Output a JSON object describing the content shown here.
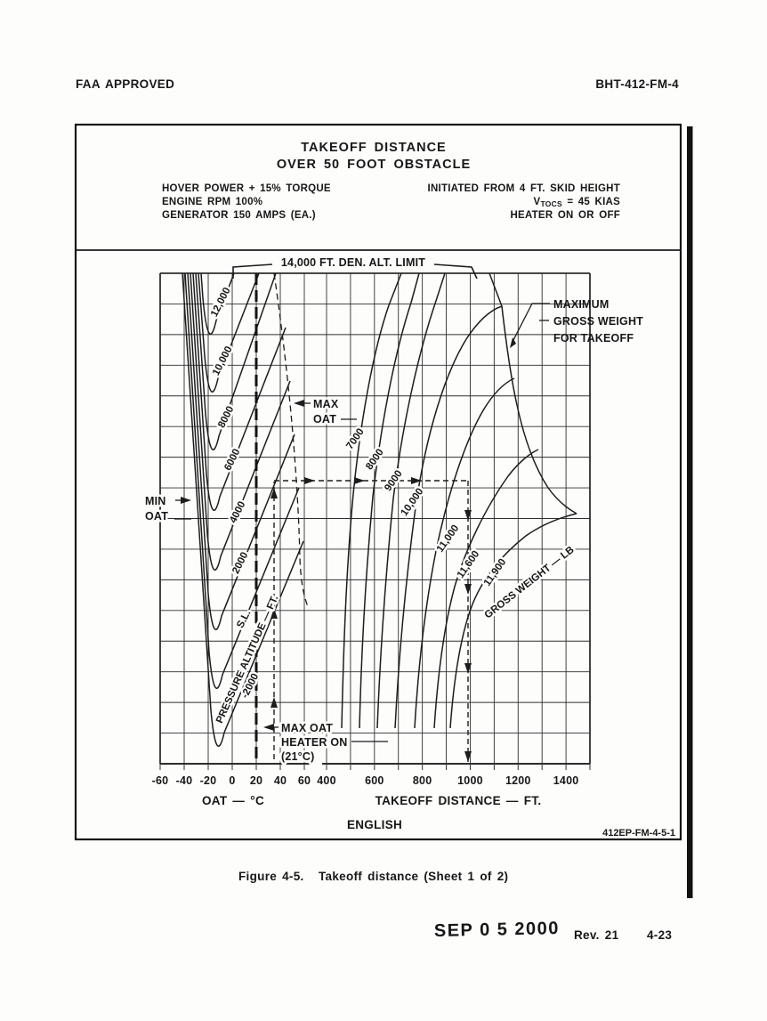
{
  "page": {
    "header_left": "FAA APPROVED",
    "header_right": "BHT-412-FM-4",
    "figure_label": "Figure 4-5.",
    "figure_title": "Takeoff distance (Sheet 1 of 2)",
    "date_stamp": "SEP 0 5 2000",
    "revision": "Rev. 21",
    "page_number": "4-23"
  },
  "chart_header": {
    "title_line1": "TAKEOFF DISTANCE",
    "title_line2": "OVER 50 FOOT OBSTACLE",
    "conditions_left": [
      "HOVER POWER + 15% TORQUE",
      "ENGINE RPM 100%",
      "GENERATOR 150 AMPS (EA.)"
    ],
    "conditions_right_line1": "INITIATED FROM 4 FT. SKID HEIGHT",
    "vtocs": {
      "v": "V",
      "sub": "TOCS",
      "rest": " = 45 KIAS"
    },
    "conditions_right_line3": "HEATER ON OR OFF"
  },
  "chart_data": {
    "type": "line",
    "title": "TAKEOFF DISTANCE OVER 50 FOOT OBSTACLE",
    "units_label": "ENGLISH",
    "figure_ref": "412EP-FM-4-5-1",
    "x_axis_oat": {
      "label": "OAT — °C",
      "tick_labels": [
        "-60",
        "-40",
        "-20",
        "0",
        "20",
        "40",
        "60"
      ],
      "range_c": [
        -60,
        60
      ]
    },
    "x_axis_distance": {
      "label": "TAKEOFF DISTANCE — FT.",
      "tick_labels": [
        "400",
        "600",
        "800",
        "1000",
        "1200",
        "1400"
      ],
      "range_ft": [
        400,
        1500
      ]
    },
    "pressure_altitude_curves": {
      "axis_label": "PRESSURE ALTITUDE — FT.",
      "labels": [
        "12,000",
        "10,000",
        "8000",
        "6000",
        "4000",
        "2000",
        "S.L.",
        "-2000"
      ]
    },
    "gross_weight_curves": {
      "axis_label": "GROSS WEIGHT — LB",
      "labels": [
        "7000",
        "8000",
        "9000",
        "10,000",
        "11,000",
        "11,600",
        "11,900"
      ]
    },
    "annotations": {
      "den_alt_limit": "14,000 FT. DEN. ALT. LIMIT",
      "max_gross": [
        "MAXIMUM",
        "GROSS WEIGHT",
        "FOR TAKEOFF"
      ],
      "max_oat": [
        "MAX",
        "OAT"
      ],
      "min_oat": [
        "MIN",
        "OAT"
      ],
      "max_oat_heater": [
        "MAX OAT",
        "HEATER ON",
        "(21°C)"
      ]
    }
  }
}
